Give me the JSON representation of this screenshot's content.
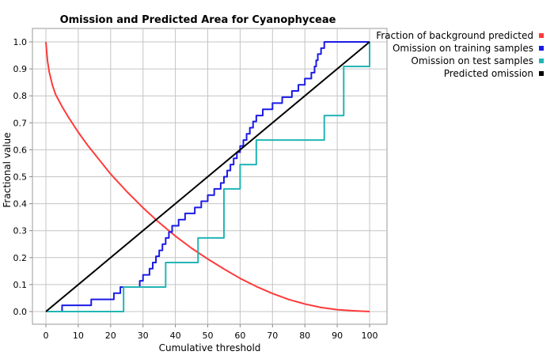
{
  "chart_data": {
    "type": "line",
    "title": "Omission and Predicted Area for Cyanophyceae",
    "xlabel": "Cumulative threshold",
    "ylabel": "Fractional value",
    "xlim": [
      0,
      100
    ],
    "ylim": [
      0,
      1.0
    ],
    "x_ticks": [
      "0",
      "10",
      "20",
      "30",
      "40",
      "50",
      "60",
      "70",
      "80",
      "90",
      "100"
    ],
    "y_ticks": [
      "0.0",
      "0.1",
      "0.2",
      "0.3",
      "0.4",
      "0.5",
      "0.6",
      "0.7",
      "0.8",
      "0.9",
      "1.0"
    ],
    "grid": true,
    "legend_position": "right",
    "series": [
      {
        "name": "Fraction of background predicted",
        "color": "#ff3a3a",
        "style": "smooth",
        "x": [
          0,
          0.2,
          0.5,
          1,
          2,
          3,
          5,
          7,
          10,
          13,
          15,
          20,
          25,
          30,
          35,
          40,
          45,
          50,
          55,
          60,
          65,
          70,
          75,
          80,
          85,
          90,
          95,
          98,
          100
        ],
        "y": [
          1.0,
          0.97,
          0.93,
          0.89,
          0.84,
          0.805,
          0.76,
          0.72,
          0.665,
          0.615,
          0.585,
          0.51,
          0.445,
          0.385,
          0.33,
          0.28,
          0.235,
          0.195,
          0.158,
          0.123,
          0.093,
          0.067,
          0.045,
          0.028,
          0.015,
          0.007,
          0.003,
          0.001,
          0.0
        ]
      },
      {
        "name": "Omission on training samples",
        "color": "#1a1ae6",
        "style": "step",
        "x": [
          0,
          5,
          14,
          21,
          23,
          29,
          30,
          32,
          33,
          34,
          35,
          36,
          37,
          38,
          39,
          41,
          43,
          46,
          48,
          50,
          52,
          54,
          55,
          56,
          57,
          58,
          59,
          60,
          61,
          62,
          63,
          64,
          65,
          67,
          70,
          73,
          76,
          78,
          80,
          82,
          83,
          83.5,
          84,
          85,
          86,
          87,
          88,
          89,
          90,
          91,
          92,
          93,
          95,
          97,
          99,
          100
        ],
        "y": [
          0,
          0.023,
          0.045,
          0.068,
          0.091,
          0.114,
          0.136,
          0.159,
          0.182,
          0.205,
          0.227,
          0.25,
          0.273,
          0.295,
          0.318,
          0.341,
          0.364,
          0.386,
          0.409,
          0.432,
          0.455,
          0.477,
          0.5,
          0.523,
          0.545,
          0.568,
          0.591,
          0.614,
          0.636,
          0.659,
          0.682,
          0.705,
          0.727,
          0.75,
          0.773,
          0.795,
          0.818,
          0.841,
          0.864,
          0.886,
          0.909,
          0.932,
          0.955,
          0.977,
          1.0,
          1.0,
          1.0,
          1.0,
          1.0,
          1.0,
          1.0,
          1.0,
          1.0,
          1.0,
          1.0,
          1.0
        ]
      },
      {
        "name": "Omission on test samples",
        "color": "#22b5b5",
        "style": "step",
        "x": [
          0,
          24,
          37,
          47,
          55,
          60,
          65,
          86,
          92,
          100
        ],
        "y": [
          0,
          0.091,
          0.182,
          0.273,
          0.455,
          0.545,
          0.636,
          0.727,
          0.909,
          1.0
        ]
      },
      {
        "name": "Predicted omission",
        "color": "#000000",
        "style": "line",
        "x": [
          0,
          100
        ],
        "y": [
          0,
          1.0
        ]
      }
    ]
  }
}
